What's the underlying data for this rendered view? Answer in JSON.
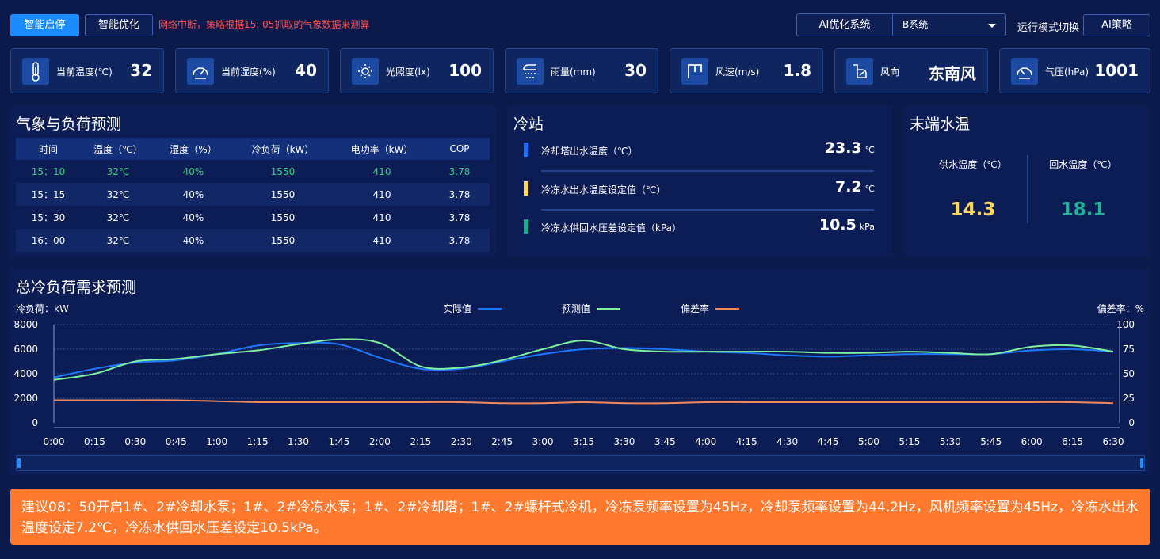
{
  "topbar": {
    "smart_start_stop": "智能启停",
    "smart_optimize": "智能优化",
    "alert": "网络中断，策略根据15: 05抓取的气象数据来测算",
    "ai_system_label": "AI优化系统",
    "system_selected": "B系统",
    "mode_switch_label": "运行模式切换",
    "mode_value": "AI策略"
  },
  "metrics": [
    {
      "icon": "thermometer-icon",
      "label": "当前温度(℃)",
      "value": "32"
    },
    {
      "icon": "humidity-gauge-icon",
      "label": "当前湿度(%)",
      "value": "40"
    },
    {
      "icon": "sun-icon",
      "label": "光照度(lx)",
      "value": "100"
    },
    {
      "icon": "rain-icon",
      "label": "雨量(mm)",
      "value": "30"
    },
    {
      "icon": "wind-flag-icon",
      "label": "风速(m/s)",
      "value": "1.8"
    },
    {
      "icon": "wind-direction-icon",
      "label": "风向",
      "value": "东南风"
    },
    {
      "icon": "pressure-gauge-icon",
      "label": "气压(hPa)",
      "value": "1001"
    }
  ],
  "forecast": {
    "title": "气象与负荷预测",
    "headers": [
      "时间",
      "温度（℃）",
      "湿度（%）",
      "冷负荷（kW）",
      "电功率（kW）",
      "COP"
    ],
    "rows": [
      [
        "15：10",
        "32℃",
        "40%",
        "1550",
        "410",
        "3.78"
      ],
      [
        "15：15",
        "32℃",
        "40%",
        "1550",
        "410",
        "3.78"
      ],
      [
        "15：30",
        "32℃",
        "40%",
        "1550",
        "410",
        "3.78"
      ],
      [
        "16：00",
        "32℃",
        "40%",
        "1550",
        "410",
        "3.78"
      ]
    ]
  },
  "cold_station": {
    "title": "冷站",
    "items": [
      {
        "label": "冷却塔出水温度（℃）",
        "value": "23.3",
        "unit": "℃",
        "color": "#1e6fff"
      },
      {
        "label": "冷冻水出水温度设定值（℃）",
        "value": "7.2",
        "unit": "℃",
        "color": "#ffd45a"
      },
      {
        "label": "冷冻水供回水压差设定值（kPa）",
        "value": "10.5",
        "unit": "kPa",
        "color": "#1fa88a"
      }
    ]
  },
  "terminal_water": {
    "title": "末端水温",
    "supply_label": "供水温度（℃）",
    "supply_value": "14.3",
    "return_label": "回水温度（℃）",
    "return_value": "18.1",
    "supply_color": "#ffd45a",
    "return_color": "#1fb39a"
  },
  "chart_data": {
    "type": "line",
    "title": "总冷负荷需求预测",
    "ylabel": "冷负荷：kW",
    "y2label": "偏差率：%",
    "ylim": [
      0,
      8000
    ],
    "y2lim": [
      0,
      100
    ],
    "yticks": [
      0,
      2000,
      4000,
      6000,
      8000
    ],
    "y2ticks": [
      0,
      25,
      50,
      75,
      100
    ],
    "grid": true,
    "legend_position": "top-center",
    "x": [
      "0:00",
      "0:15",
      "0:30",
      "0:45",
      "1:00",
      "1:15",
      "1:30",
      "1:45",
      "2:00",
      "2:15",
      "2:30",
      "2:45",
      "3:00",
      "3:15",
      "3:30",
      "3:45",
      "4:00",
      "4:15",
      "4:30",
      "4:45",
      "5:00",
      "5:15",
      "5:30",
      "5:45",
      "6:00",
      "6:15",
      "6:30"
    ],
    "series": [
      {
        "name": "实际值",
        "axis": "left",
        "color": "#1e78ff",
        "values": [
          3700,
          4400,
          4900,
          5100,
          5600,
          6300,
          6500,
          6400,
          5300,
          4400,
          4400,
          5000,
          5600,
          6000,
          6100,
          6000,
          5800,
          5700,
          5500,
          5400,
          5500,
          5600,
          5600,
          5600,
          5900,
          6000,
          5800
        ]
      },
      {
        "name": "预测值",
        "axis": "left",
        "color": "#7ff0a0",
        "values": [
          3500,
          4000,
          5000,
          5200,
          5600,
          5900,
          6400,
          6800,
          6500,
          4600,
          4500,
          5100,
          6000,
          6700,
          6000,
          5800,
          5800,
          5800,
          5800,
          5700,
          5700,
          5800,
          5700,
          5600,
          6200,
          6300,
          5800
        ]
      },
      {
        "name": "偏差率",
        "axis": "right",
        "color": "#f08a5d",
        "values": [
          23,
          23,
          23,
          23,
          22,
          21,
          21,
          21,
          21,
          21,
          21,
          20,
          20,
          21,
          20,
          20,
          21,
          21,
          21,
          21,
          21,
          21,
          21,
          21,
          21,
          21,
          20
        ]
      }
    ]
  },
  "suggestion": "建议08：50开启1#、2#冷却水泵；1#、2#冷冻水泵；1#、2#冷却塔；1#、2#螺杆式冷机，冷冻泵频率设置为45Hz，冷却泵频率设置为44.2Hz，风机频率设置为45Hz，冷冻水出水温度设定7.2℃，冷冻水供回水压差设定10.5kPa。"
}
